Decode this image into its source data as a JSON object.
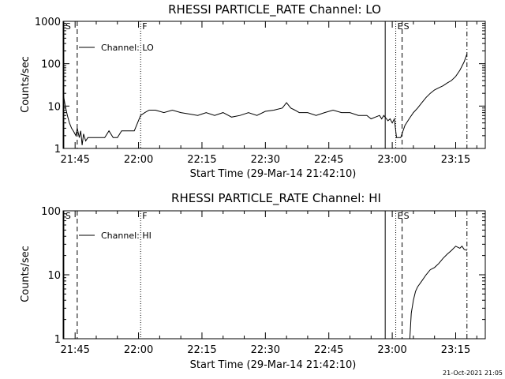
{
  "timestamp": "21-Oct-2021 21:05",
  "chart_data": [
    {
      "type": "line",
      "title": "RHESSI PARTICLE_RATE Channel: LO",
      "xlabel": "Start Time (29-Mar-14 21:42:10)",
      "ylabel": "Counts/sec",
      "yscale": "log",
      "ylim": [
        1,
        1000
      ],
      "xlim": [
        "21:42:10",
        "23:22:00"
      ],
      "x_ticks": [
        "21:45",
        "22:00",
        "22:15",
        "22:30",
        "22:45",
        "23:00",
        "23:15"
      ],
      "y_ticks": [
        "1",
        "10",
        "100",
        "1000"
      ],
      "legend": {
        "position": "top-left",
        "entries": [
          "Channel: LO"
        ]
      },
      "markers": [
        {
          "time": "21:42:20",
          "label": "S",
          "style": "solid"
        },
        {
          "time": "21:45:30",
          "label": "",
          "style": "dashed"
        },
        {
          "time": "22:00:30",
          "label": "F",
          "style": "dotted"
        },
        {
          "time": "22:58:20",
          "label": "",
          "style": "solid"
        },
        {
          "time": "23:00:50",
          "label": "E",
          "style": "dotted"
        },
        {
          "time": "23:02:20",
          "label": "S",
          "style": "dashed"
        },
        {
          "time": "23:17:40",
          "label": "",
          "style": "dashdot"
        }
      ],
      "series": [
        {
          "name": "Channel: LO",
          "x": [
            "21:42:10",
            "21:42:40",
            "21:43:10",
            "21:43:40",
            "21:44:10",
            "21:44:40",
            "21:45:10",
            "21:45:30",
            "21:46:00",
            "21:46:20",
            "21:46:40",
            "21:47:00",
            "21:47:30",
            "21:48:00",
            "21:48:30",
            "21:49:00",
            "21:50:00",
            "21:51:00",
            "21:52:00",
            "21:53:00",
            "21:54:00",
            "21:55:00",
            "21:56:00",
            "21:56:30",
            "21:57:00",
            "21:58:00",
            "21:59:00",
            "22:00:30",
            "22:01:30",
            "22:02:30",
            "22:04:00",
            "22:06:00",
            "22:08:00",
            "22:10:00",
            "22:12:00",
            "22:14:00",
            "22:16:00",
            "22:18:00",
            "22:20:00",
            "22:22:00",
            "22:24:00",
            "22:26:00",
            "22:28:00",
            "22:30:00",
            "22:32:00",
            "22:34:00",
            "22:35:00",
            "22:36:00",
            "22:37:00",
            "22:38:00",
            "22:40:00",
            "22:42:00",
            "22:44:00",
            "22:46:00",
            "22:48:00",
            "22:50:00",
            "22:52:00",
            "22:54:00",
            "22:55:00",
            "22:56:00",
            "22:57:00",
            "22:57:30",
            "22:58:00",
            "22:59:00",
            "22:59:30",
            "23:00:00",
            "23:00:30",
            "23:01:00",
            "23:02:00",
            "23:02:30",
            "23:03:00",
            "23:04:00",
            "23:05:00",
            "23:06:00",
            "23:07:00",
            "23:08:00",
            "23:09:00",
            "23:10:00",
            "23:11:00",
            "23:12:00",
            "23:13:00",
            "23:14:00",
            "23:15:00",
            "23:16:00",
            "23:17:00",
            "23:17:40"
          ],
          "y": [
            20,
            10,
            6,
            4,
            3,
            2.5,
            2,
            3,
            1.8,
            2.6,
            1.2,
            2.2,
            1.5,
            1.8,
            1.8,
            1.8,
            1.8,
            1.8,
            1.8,
            2.6,
            1.8,
            1.8,
            2.6,
            2.6,
            2.6,
            2.6,
            2.6,
            6,
            7,
            8,
            8,
            7,
            8,
            7,
            6.5,
            6,
            7,
            6,
            7,
            5.5,
            6,
            7,
            6,
            7.5,
            8,
            9,
            12,
            9,
            8,
            7,
            7,
            6,
            7,
            8,
            7,
            7,
            6,
            6,
            5,
            5.5,
            6,
            5,
            6,
            4.5,
            5,
            4,
            5,
            1.8,
            1.8,
            2.5,
            3.5,
            5,
            7,
            9,
            12,
            16,
            20,
            24,
            27,
            30,
            35,
            40,
            50,
            70,
            110,
            170
          ]
        }
      ]
    },
    {
      "type": "line",
      "title": "RHESSI PARTICLE_RATE Channel: HI",
      "xlabel": "Start Time (29-Mar-14 21:42:10)",
      "ylabel": "Counts/sec",
      "yscale": "log",
      "ylim": [
        1,
        100
      ],
      "xlim": [
        "21:42:10",
        "23:22:00"
      ],
      "x_ticks": [
        "21:45",
        "22:00",
        "22:15",
        "22:30",
        "22:45",
        "23:00",
        "23:15"
      ],
      "y_ticks": [
        "1",
        "10",
        "100"
      ],
      "legend": {
        "position": "top-left",
        "entries": [
          "Channel: HI"
        ]
      },
      "markers": [
        {
          "time": "21:42:20",
          "label": "S",
          "style": "solid"
        },
        {
          "time": "21:45:30",
          "label": "",
          "style": "dashed"
        },
        {
          "time": "22:00:30",
          "label": "F",
          "style": "dotted"
        },
        {
          "time": "22:58:20",
          "label": "",
          "style": "solid"
        },
        {
          "time": "23:00:50",
          "label": "E",
          "style": "dotted"
        },
        {
          "time": "23:02:20",
          "label": "S",
          "style": "dashed"
        },
        {
          "time": "23:17:40",
          "label": "",
          "style": "dashdot"
        }
      ],
      "series": [
        {
          "name": "Channel: HI",
          "x": [
            "23:04:10",
            "23:04:30",
            "23:05:00",
            "23:05:30",
            "23:06:00",
            "23:07:00",
            "23:08:00",
            "23:09:00",
            "23:10:00",
            "23:11:00",
            "23:12:00",
            "23:13:00",
            "23:14:00",
            "23:15:00",
            "23:16:00",
            "23:16:30",
            "23:17:00",
            "23:17:40"
          ],
          "y": [
            1,
            2.5,
            4,
            5.5,
            6.5,
            8,
            10,
            12,
            13,
            15,
            18,
            21,
            24,
            28,
            26,
            28,
            25,
            24
          ]
        }
      ]
    }
  ]
}
